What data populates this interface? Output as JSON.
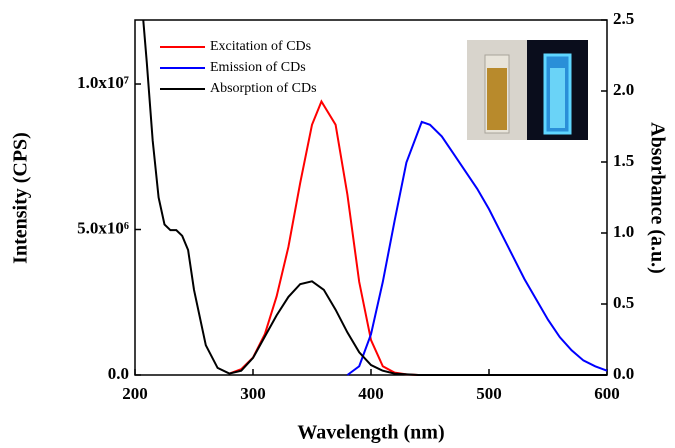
{
  "chart_data": {
    "type": "line",
    "xlabel": "Wavelength (nm)",
    "ylabel": "Intensity (CPS)",
    "y2label": "Absorbance (a.u.)",
    "xlim": [
      200,
      600
    ],
    "xticks": [
      200,
      300,
      400,
      500,
      600
    ],
    "ylim": [
      0,
      12200000
    ],
    "yticks": [
      {
        "value": 0,
        "label": "0.0"
      },
      {
        "value": 5000000,
        "label": "5.0x10⁶"
      },
      {
        "value": 10000000,
        "label": "1.0x10⁷"
      }
    ],
    "y2lim": [
      0,
      2.5
    ],
    "y2ticks": [
      {
        "value": 0,
        "label": "0.0"
      },
      0.5,
      {
        "value": 1,
        "label": "1.0"
      },
      1.5,
      {
        "value": 2,
        "label": "2.0"
      },
      2.5
    ],
    "series": [
      {
        "name": "Excitation of CDs",
        "color": "#ff0000",
        "x": [
          280,
          290,
          300,
          310,
          320,
          330,
          340,
          350,
          358,
          370,
          380,
          390,
          400,
          410,
          420,
          430,
          440
        ],
        "values": [
          50000,
          200000,
          600000,
          1400000,
          2700000,
          4400000,
          6600000,
          8600000,
          9400000,
          8600000,
          6200000,
          3200000,
          1200000,
          300000,
          80000,
          20000,
          0
        ]
      },
      {
        "name": "Emission of CDs",
        "color": "#0000ff",
        "x": [
          380,
          390,
          400,
          410,
          420,
          430,
          443,
          450,
          460,
          470,
          480,
          490,
          500,
          510,
          520,
          530,
          540,
          550,
          560,
          570,
          580,
          590,
          600
        ],
        "values": [
          0,
          300000,
          1400000,
          3200000,
          5300000,
          7300000,
          8700000,
          8600000,
          8200000,
          7600000,
          7000000,
          6400000,
          5700000,
          4900000,
          4100000,
          3300000,
          2600000,
          1900000,
          1300000,
          850000,
          500000,
          300000,
          150000
        ]
      },
      {
        "name": "Absorption of CDs",
        "color": "#000000",
        "axis": "y2",
        "x": [
          207,
          210,
          215,
          220,
          225,
          230,
          235,
          240,
          245,
          250,
          260,
          270,
          280,
          290,
          300,
          310,
          320,
          330,
          340,
          350,
          360,
          370,
          380,
          390,
          400,
          410,
          420,
          440,
          600
        ],
        "values": [
          2.5,
          2.2,
          1.65,
          1.25,
          1.06,
          1.02,
          1.02,
          0.98,
          0.88,
          0.6,
          0.21,
          0.05,
          0.01,
          0.03,
          0.12,
          0.27,
          0.42,
          0.55,
          0.64,
          0.66,
          0.6,
          0.46,
          0.3,
          0.16,
          0.07,
          0.03,
          0.01,
          0,
          0
        ]
      }
    ]
  }
}
